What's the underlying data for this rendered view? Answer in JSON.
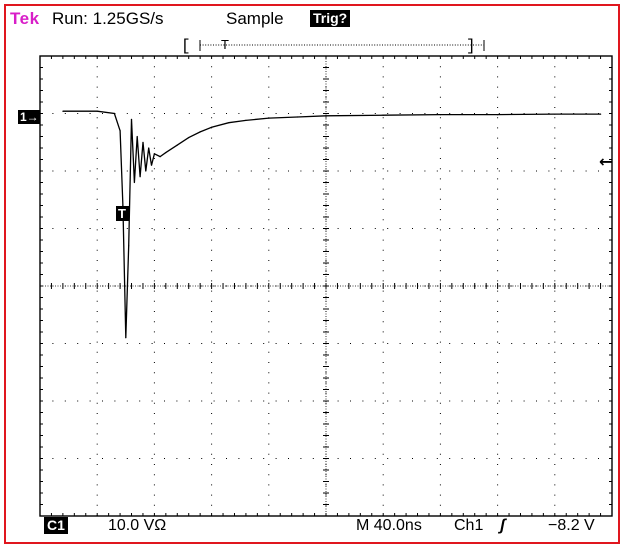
{
  "header": {
    "brand": "Tek",
    "run_status": "Run: 1.25GS/s",
    "mode": "Sample",
    "trigger_status": "Trig?"
  },
  "channel_marker": "1→",
  "trigger_marker": "T",
  "trigger_level_marker": "←",
  "record_window": {
    "left_bracket": "[",
    "right_bracket": "]",
    "trigger_position": "T"
  },
  "footer": {
    "channel_badge": "C1",
    "volts_per_div": "10.0 VΩ",
    "timebase": "M 40.0ns",
    "trigger_source": "Ch1",
    "trigger_slope": "ʃ",
    "trigger_level": "−8.2 V"
  },
  "colors": {
    "border": "#e0161e",
    "brand": "#d81ec8",
    "trace": "#000000",
    "grid": "#000000"
  },
  "chart_data": {
    "type": "line",
    "title": "",
    "xlabel": "",
    "ylabel": "",
    "x_divisions": 10,
    "y_divisions": 8,
    "xlim": [
      0,
      10
    ],
    "ylim": [
      -4,
      4
    ],
    "series": [
      {
        "values_x": [
          0.4,
          1.0,
          1.3,
          1.4,
          1.45,
          1.5,
          1.55,
          1.6,
          1.65,
          1.7,
          1.75,
          1.8,
          1.85,
          1.9,
          1.95,
          2.0,
          2.1,
          2.2,
          2.4,
          2.6,
          2.8,
          3.0,
          3.3,
          3.6,
          4.0,
          4.5,
          5.0,
          6.0,
          7.0,
          8.0,
          9.0,
          9.8
        ],
        "values_y": [
          3.04,
          3.04,
          3.0,
          2.7,
          1.4,
          -0.9,
          0.7,
          2.9,
          1.8,
          2.6,
          1.9,
          2.5,
          2.0,
          2.4,
          2.1,
          2.3,
          2.25,
          2.32,
          2.45,
          2.58,
          2.68,
          2.76,
          2.84,
          2.88,
          2.92,
          2.94,
          2.96,
          2.97,
          2.98,
          2.98,
          2.99,
          2.99
        ]
      }
    ]
  }
}
